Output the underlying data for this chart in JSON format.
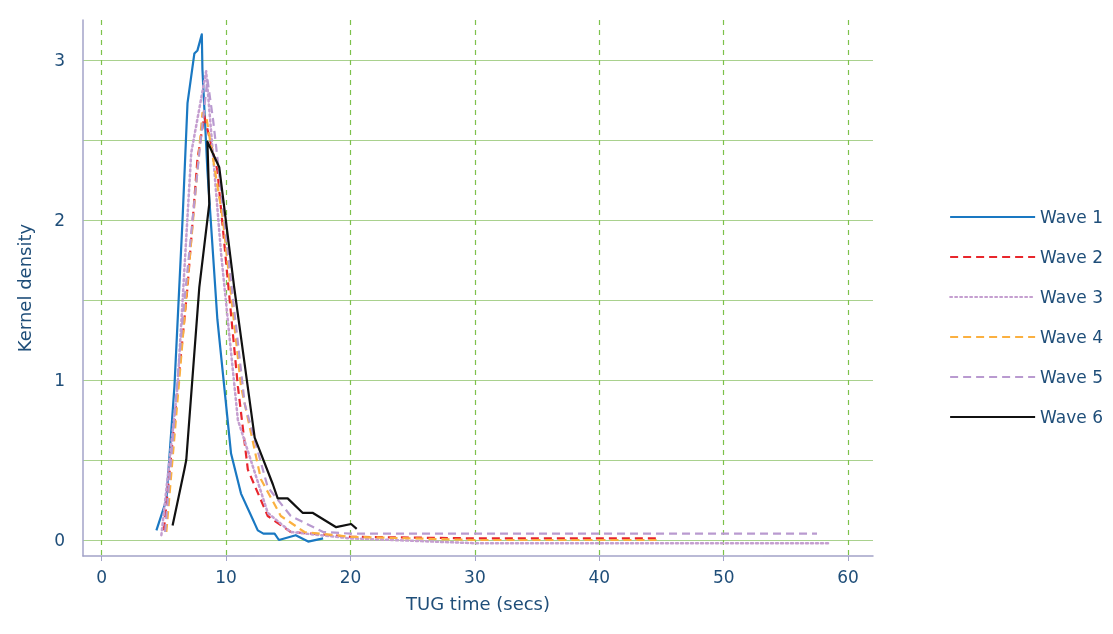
{
  "chart_data": {
    "type": "line",
    "xlabel": "TUG time (secs)",
    "ylabel": "Kernel density",
    "xlim": [
      -1.5,
      62
    ],
    "xticks": [
      0,
      10,
      20,
      30,
      40,
      50,
      60
    ],
    "ylim": [
      -0.1,
      3.25
    ],
    "yticks": [
      0,
      {
        "value": 0.5,
        "label": null
      },
      1,
      {
        "value": 1.5,
        "label": null
      },
      2,
      {
        "value": 2.5,
        "label": null
      },
      3
    ],
    "grid": true,
    "legend": "right",
    "marker": "none",
    "series": [
      {
        "name": "Wave 1",
        "color": "#1a78c2",
        "line_style": "solid",
        "x": [
          4.4,
          5.2,
          5.85,
          6.5,
          6.9,
          7.45,
          7.7,
          8.05,
          8.1,
          8.5,
          9.3,
          10.4,
          11.2,
          12.55,
          13.0,
          13.9,
          14.25,
          15.6,
          16.6,
          17.8
        ],
        "values": [
          0.06,
          0.25,
          0.96,
          2.0,
          2.73,
          3.04,
          3.06,
          3.16,
          2.94,
          2.31,
          1.38,
          0.54,
          0.29,
          0.06,
          0.04,
          0.04,
          0.0,
          0.03,
          -0.01,
          0.01
        ]
      },
      {
        "name": "Wave 2",
        "color": "#e8262c",
        "line_style": "dashed",
        "x": [
          5.0,
          6.9,
          7.7,
          8.25,
          9.3,
          10.95,
          11.75,
          13.35,
          15.2,
          20,
          30,
          44.6
        ],
        "values": [
          0.06,
          1.58,
          2.38,
          2.65,
          2.31,
          0.96,
          0.44,
          0.15,
          0.05,
          0.02,
          0.01,
          0.01
        ]
      },
      {
        "name": "Wave 3",
        "color": "#c59fd0",
        "line_style": "dotted",
        "x": [
          4.8,
          6.1,
          7.2,
          8.4,
          9.6,
          10.95,
          13.35,
          15.2,
          20,
          30,
          58.6
        ],
        "values": [
          0.03,
          0.96,
          2.42,
          2.93,
          1.79,
          0.75,
          0.17,
          0.05,
          0.01,
          -0.02,
          -0.02
        ]
      },
      {
        "name": "Wave 4",
        "color": "#fbb040",
        "line_style": "dashed",
        "x": [
          5.2,
          6.65,
          8.1,
          8.4,
          9.75,
          11.2,
          12.8,
          14.4,
          16.3,
          20,
          30,
          44.6
        ],
        "values": [
          0.05,
          1.38,
          2.67,
          2.65,
          2.0,
          0.96,
          0.38,
          0.15,
          0.05,
          0.02,
          0.0,
          0.0
        ]
      },
      {
        "name": "Wave 5",
        "color": "#b99ad0",
        "line_style": "dashed",
        "x": [
          5.1,
          6.5,
          7.85,
          8.5,
          8.95,
          9.2,
          10.15,
          11.5,
          13.35,
          15.2,
          17.8,
          20,
          30,
          57.5
        ],
        "values": [
          0.05,
          1.38,
          2.42,
          2.88,
          2.63,
          2.46,
          1.79,
          0.85,
          0.33,
          0.15,
          0.05,
          0.04,
          0.04,
          0.04
        ]
      },
      {
        "name": "Wave 6",
        "color": "#111111",
        "line_style": "solid",
        "x": [
          5.7,
          6.65,
          6.8,
          7.85,
          8.65,
          8.5,
          9.45,
          10.65,
          12.3,
          13.75,
          14.15,
          14.95,
          16.15,
          16.95,
          18.85,
          20.05,
          20.5
        ],
        "values": [
          0.09,
          0.44,
          0.5,
          1.58,
          2.1,
          2.49,
          2.33,
          1.58,
          0.64,
          0.35,
          0.26,
          0.26,
          0.17,
          0.17,
          0.08,
          0.1,
          0.07
        ]
      }
    ]
  }
}
